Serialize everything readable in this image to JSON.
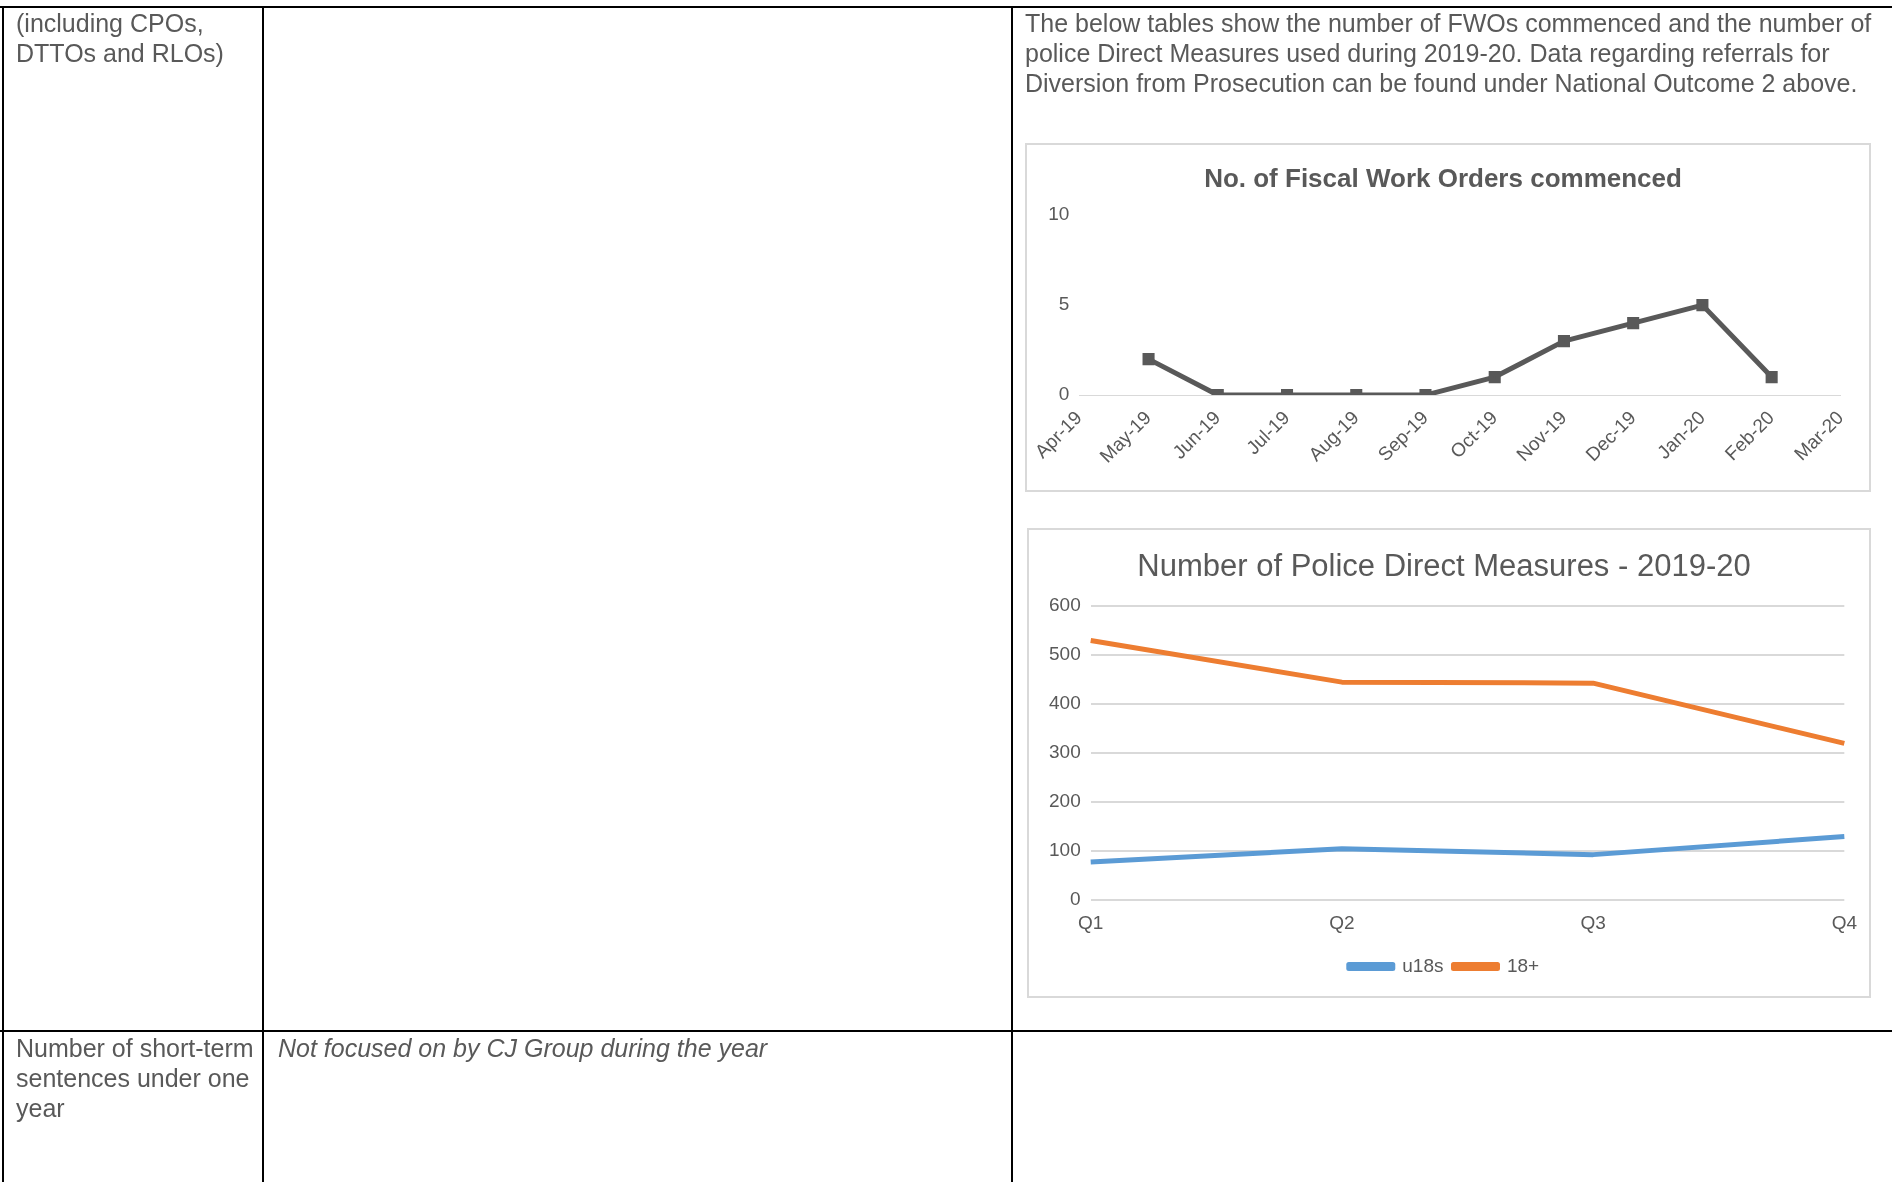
{
  "chart_data": [
    {
      "type": "line",
      "title": "No. of Fiscal Work Orders commenced",
      "categories": [
        "Apr-19",
        "May-19",
        "Jun-19",
        "Jul-19",
        "Aug-19",
        "Sep-19",
        "Oct-19",
        "Nov-19",
        "Dec-19",
        "Jan-20",
        "Feb-20",
        "Mar-20"
      ],
      "series": [
        {
          "color": "#595959",
          "values": [
            null,
            2,
            0,
            0,
            0,
            0,
            1,
            3,
            4,
            5,
            1,
            null
          ]
        }
      ],
      "ylim": [
        0,
        10
      ],
      "yticks": [
        0,
        5,
        10
      ],
      "grid": false,
      "legend": false,
      "marker": "square",
      "annotations": [
        "The below tables show the number of FWOs commenced and the number of police Direct Measures used during 2019-20. Data regarding referrals for Diversion from Prosecution can be found under National Outcome 2 above.",
        "(including CPOs, DTTOs and RLOs)",
        "Number of short-term sentences under one year",
        "Not focused on by CJ Group during the year"
      ]
    },
    {
      "type": "line",
      "title": "Number of Police Direct Measures - 2019-20",
      "categories": [
        "Q1",
        "Q2",
        "Q3",
        "Q4"
      ],
      "series": [
        {
          "name": "u18s",
          "color": "#5b9bd5",
          "values": [
            78,
            105,
            93,
            130
          ]
        },
        {
          "name": "18+",
          "color": "#ed7d31",
          "values": [
            530,
            445,
            443,
            320
          ]
        }
      ],
      "ylim": [
        0,
        600
      ],
      "yticks": [
        0,
        100,
        200,
        300,
        400,
        500,
        600
      ],
      "grid": "y",
      "legend": "bottom",
      "marker": "none"
    }
  ]
}
